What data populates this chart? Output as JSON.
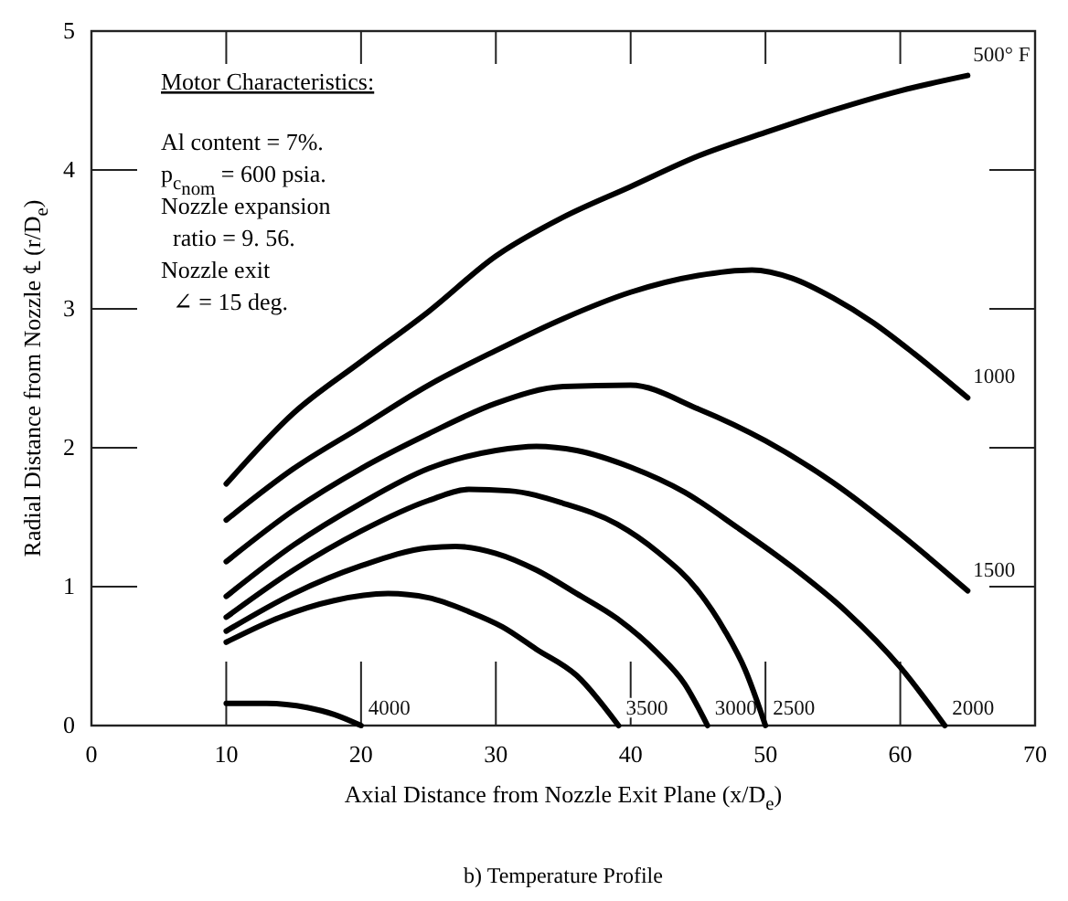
{
  "chart_data": {
    "type": "line",
    "title": "b) Temperature Profile",
    "xlabel": "Axial Distance from Nozzle Exit Plane (x/D$_{e}$)",
    "ylabel": "Radial Distance from Nozzle ℄ (r/D$_{e}$)",
    "xlim": [
      0,
      70
    ],
    "xticks": [
      0,
      10,
      20,
      30,
      40,
      50,
      60,
      70
    ],
    "ylim": [
      0,
      5
    ],
    "yticks": [
      0,
      1,
      2,
      3,
      4,
      5
    ],
    "grid": false,
    "legend": false,
    "marker": "none",
    "line_style": "solid",
    "series": [
      {
        "name": "500° F",
        "color": "#000000",
        "x": [
          10,
          15,
          20,
          25,
          30,
          35,
          40,
          45,
          50,
          55,
          60,
          65
        ],
        "values": [
          1.74,
          2.25,
          2.62,
          2.98,
          3.38,
          3.66,
          3.88,
          4.1,
          4.27,
          4.43,
          4.57,
          4.68
        ]
      },
      {
        "name": "1000",
        "color": "#000000",
        "x": [
          10,
          15,
          20,
          25,
          30,
          35,
          40,
          45,
          49,
          52,
          55,
          58,
          61,
          65
        ],
        "values": [
          1.48,
          1.85,
          2.15,
          2.45,
          2.7,
          2.93,
          3.12,
          3.24,
          3.28,
          3.22,
          3.08,
          2.9,
          2.68,
          2.36
        ]
      },
      {
        "name": "1500",
        "color": "#000000",
        "x": [
          10,
          15,
          20,
          25,
          30,
          35,
          40,
          45,
          50,
          55,
          60,
          65
        ],
        "values": [
          1.18,
          1.55,
          1.85,
          2.1,
          2.32,
          2.44,
          2.45,
          2.28,
          2.05,
          1.75,
          1.38,
          0.97
        ]
      },
      {
        "name": "2000",
        "color": "#000000",
        "x": [
          10,
          15,
          20,
          25,
          30,
          33,
          36,
          40,
          44,
          48,
          52,
          56,
          60,
          63.3
        ],
        "values": [
          0.93,
          1.3,
          1.6,
          1.85,
          1.98,
          2.01,
          1.98,
          1.86,
          1.68,
          1.42,
          1.14,
          0.82,
          0.42,
          0
        ]
      },
      {
        "name": "2500",
        "color": "#000000",
        "x": [
          10,
          15,
          20,
          25,
          28,
          31,
          35,
          39,
          42,
          45,
          47,
          48.5,
          50
        ],
        "values": [
          0.78,
          1.12,
          1.4,
          1.62,
          1.7,
          1.69,
          1.6,
          1.45,
          1.25,
          0.97,
          0.68,
          0.4,
          0
        ]
      },
      {
        "name": "3000",
        "color": "#000000",
        "x": [
          10,
          15,
          20,
          25,
          27,
          30,
          33,
          36,
          39,
          42,
          44,
          45.7
        ],
        "values": [
          0.68,
          0.95,
          1.15,
          1.28,
          1.29,
          1.24,
          1.12,
          0.95,
          0.77,
          0.52,
          0.3,
          0
        ]
      },
      {
        "name": "3500",
        "color": "#000000",
        "x": [
          10,
          14,
          18,
          22,
          25,
          28,
          30.5,
          33,
          36,
          39.1
        ],
        "values": [
          0.6,
          0.78,
          0.9,
          0.95,
          0.92,
          0.82,
          0.71,
          0.55,
          0.36,
          0
        ]
      },
      {
        "name": "4000",
        "color": "#000000",
        "x": [
          10,
          13,
          16,
          18,
          20
        ],
        "values": [
          0.16,
          0.16,
          0.13,
          0.08,
          0
        ]
      }
    ],
    "annotations": [
      "Motor Characteristics:",
      "Al content = 7%.",
      "p$_{c}$$_{nom}$ = 600 psia.",
      "Nozzle expansion",
      "  ratio = 9. 56.",
      "Nozzle exit",
      "  ∠ = 15 deg."
    ]
  }
}
